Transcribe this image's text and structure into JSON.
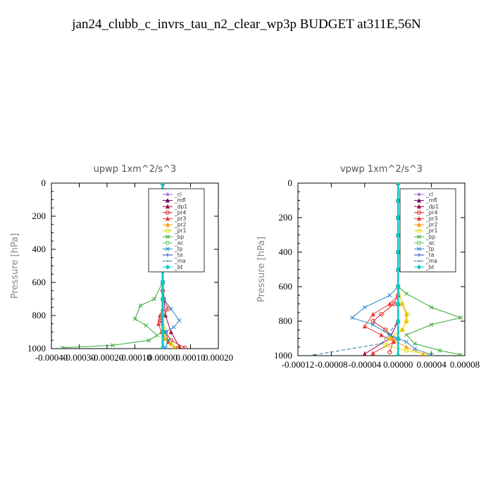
{
  "title": "jan24_clubb_c_invrs_tau_n2_clear_wp3p  BUDGET at311E,56N",
  "chart_data": [
    {
      "type": "line",
      "title": "upwp   1xm^2/s^3",
      "ylabel": "Pressure  [hPa]",
      "xlim": [
        -0.0004,
        0.0002
      ],
      "ylim": [
        1000,
        0
      ],
      "xticks": [
        -0.0004,
        -0.0003,
        -0.0002,
        -0.0001,
        0.0,
        0.0001,
        0.0002
      ],
      "xtick_labels": [
        "-0.00040",
        "-0.00030",
        "-0.00020",
        "-0.00010",
        "0.00000",
        "0.00010",
        "0.00020"
      ],
      "yticks": [
        0,
        200,
        400,
        600,
        800,
        1000
      ],
      "ytick_labels": [
        "0",
        "200",
        "400",
        "600",
        "800",
        "1000"
      ],
      "legend_position": "top-right",
      "series": [
        {
          "name": "_cl",
          "color": "#9966cc",
          "marker": "star",
          "x": [
            0,
            0,
            0,
            0,
            0,
            0,
            0,
            0,
            0,
            0,
            0
          ],
          "y": [
            0,
            100,
            200,
            300,
            400,
            500,
            600,
            700,
            800,
            900,
            1000
          ]
        },
        {
          "name": "_mfl",
          "color": "#660066",
          "marker": "tri",
          "x": [
            0,
            0,
            0,
            0,
            0,
            0,
            0,
            0,
            0,
            0,
            0
          ],
          "y": [
            0,
            100,
            200,
            300,
            400,
            500,
            600,
            700,
            800,
            900,
            1000
          ]
        },
        {
          "name": "_dp1",
          "color": "#aa0044",
          "marker": "tri",
          "x": [
            0,
            0,
            0,
            0,
            0,
            0,
            0,
            5e-06,
            1e-05,
            3e-05,
            6e-05
          ],
          "y": [
            0,
            100,
            200,
            300,
            400,
            500,
            600,
            700,
            800,
            900,
            990
          ]
        },
        {
          "name": "_pr4",
          "color": "#dd2222",
          "marker": "circle",
          "x": [
            0,
            0,
            0,
            0,
            0,
            0,
            3e-06,
            2e-05,
            -1e-05,
            1e-05,
            3e-05,
            8e-05
          ],
          "y": [
            0,
            200,
            400,
            500,
            600,
            650,
            700,
            760,
            830,
            900,
            950,
            995
          ]
        },
        {
          "name": "_pr3",
          "color": "#ee3333",
          "marker": "tri",
          "x": [
            0,
            0,
            0,
            0,
            0,
            0,
            -1e-05,
            -1.5e-05,
            -5e-06,
            2e-05,
            5e-05
          ],
          "y": [
            0,
            200,
            400,
            600,
            700,
            760,
            800,
            850,
            900,
            960,
            995
          ]
        },
        {
          "name": "_pr2",
          "color": "#ff9900",
          "marker": "tri",
          "x": [
            0,
            0,
            0,
            0,
            0,
            0,
            0,
            5e-06,
            1e-05,
            3e-05,
            4e-05
          ],
          "y": [
            0,
            200,
            400,
            600,
            700,
            800,
            850,
            900,
            940,
            970,
            995
          ]
        },
        {
          "name": "_pr1",
          "color": "#dddd00",
          "marker": "circle",
          "x": [
            0,
            0,
            0,
            0,
            0,
            0,
            5e-06,
            1e-05,
            3e-05,
            5e-05
          ],
          "y": [
            0,
            200,
            400,
            600,
            700,
            800,
            880,
            930,
            970,
            995
          ]
        },
        {
          "name": "_bp",
          "color": "#33aa33",
          "marker": "x",
          "x": [
            0,
            0,
            0,
            0,
            -3e-05,
            -8e-05,
            -0.0001,
            -6e-05,
            -2e-05,
            -5e-05,
            -0.00018,
            -0.00036
          ],
          "y": [
            0,
            200,
            400,
            600,
            700,
            740,
            820,
            860,
            920,
            950,
            980,
            995
          ]
        },
        {
          "name": "_ac",
          "color": "#66cc66",
          "marker": "circle",
          "x": [
            0,
            0,
            0,
            0,
            0,
            0,
            0,
            0,
            0,
            0,
            0
          ],
          "y": [
            0,
            100,
            200,
            300,
            400,
            500,
            600,
            700,
            800,
            900,
            1000
          ]
        },
        {
          "name": "_tp",
          "color": "#2288cc",
          "marker": "x",
          "x": [
            0,
            0,
            0,
            0,
            4e-06,
            3e-05,
            6e-05,
            4e-05,
            1e-05,
            2e-05,
            1e-05
          ],
          "y": [
            0,
            200,
            400,
            600,
            700,
            760,
            830,
            870,
            900,
            950,
            995
          ]
        },
        {
          "name": "_ta",
          "color": "#2244bb",
          "marker": "plus",
          "x": [
            0,
            0,
            0,
            0,
            0,
            0,
            0,
            0,
            0,
            0,
            0
          ],
          "y": [
            0,
            100,
            200,
            300,
            400,
            500,
            600,
            700,
            800,
            900,
            1000
          ]
        },
        {
          "name": "_ma",
          "color": "#227799",
          "marker": "dash",
          "x": [
            0,
            0,
            0,
            0,
            0,
            0,
            0,
            0,
            0,
            0,
            0
          ],
          "y": [
            0,
            100,
            200,
            300,
            400,
            500,
            600,
            700,
            800,
            900,
            1000
          ]
        },
        {
          "name": "_bt",
          "color": "#00cccc",
          "marker": "diamond",
          "x": [
            0,
            0,
            0,
            0,
            0,
            0,
            0,
            0,
            0,
            0,
            0
          ],
          "y": [
            0,
            100,
            200,
            300,
            400,
            500,
            600,
            700,
            800,
            900,
            1000
          ]
        }
      ]
    },
    {
      "type": "line",
      "title": "vpwp   1xm^2/s^3",
      "ylabel": "Pressure  [hPa]",
      "xlim": [
        -0.00012,
        8e-05
      ],
      "ylim": [
        1000,
        0
      ],
      "xticks": [
        -0.00012,
        -8e-05,
        -4e-05,
        0.0,
        4e-05,
        8e-05
      ],
      "xtick_labels": [
        "-0.00012",
        "-0.00008",
        "-0.00004",
        "0.00000",
        "0.00004",
        "0.00008"
      ],
      "yticks": [
        0,
        200,
        400,
        600,
        800,
        1000
      ],
      "ytick_labels": [
        "0",
        "200",
        "400",
        "600",
        "800",
        "1000"
      ],
      "legend_position": "top-right",
      "series": [
        {
          "name": "_cl",
          "color": "#9966cc",
          "marker": "star",
          "x": [
            0,
            0,
            0,
            0,
            0,
            0,
            0,
            0,
            0,
            0,
            0
          ],
          "y": [
            0,
            100,
            200,
            300,
            400,
            500,
            600,
            700,
            800,
            900,
            1000
          ]
        },
        {
          "name": "_mfl",
          "color": "#660066",
          "marker": "tri",
          "x": [
            0,
            0,
            0,
            0,
            0,
            0,
            0,
            0,
            0,
            0,
            0
          ],
          "y": [
            0,
            100,
            200,
            300,
            400,
            500,
            600,
            700,
            800,
            900,
            1000
          ]
        },
        {
          "name": "_dp1",
          "color": "#aa0044",
          "marker": "tri",
          "x": [
            0,
            0,
            0,
            0,
            0,
            0,
            0,
            0,
            0,
            -1e-05,
            -4e-05
          ],
          "y": [
            0,
            100,
            200,
            300,
            400,
            500,
            600,
            700,
            800,
            900,
            990
          ]
        },
        {
          "name": "_pr4",
          "color": "#dd2222",
          "marker": "circle",
          "x": [
            0,
            0,
            0,
            0,
            0,
            -5e-06,
            -2e-05,
            -3e-05,
            -1.5e-05,
            -5e-06,
            -1e-05
          ],
          "y": [
            0,
            200,
            400,
            600,
            650,
            700,
            760,
            800,
            850,
            900,
            980
          ]
        },
        {
          "name": "_pr3",
          "color": "#ee3333",
          "marker": "tri",
          "x": [
            0,
            0,
            0,
            0,
            0,
            -1e-05,
            -3e-05,
            -4e-05,
            -2e-05,
            -5e-06,
            -3e-05
          ],
          "y": [
            0,
            200,
            400,
            600,
            650,
            700,
            760,
            830,
            880,
            920,
            985
          ]
        },
        {
          "name": "_pr2",
          "color": "#ff9900",
          "marker": "tri",
          "x": [
            0,
            0,
            0,
            0,
            5e-06,
            1e-05,
            1e-05,
            5e-06,
            -1e-05,
            1e-05,
            3e-05
          ],
          "y": [
            0,
            200,
            400,
            600,
            700,
            760,
            800,
            850,
            900,
            950,
            990
          ]
        },
        {
          "name": "_pr1",
          "color": "#dddd00",
          "marker": "circle",
          "x": [
            0,
            0,
            0,
            0,
            5e-06,
            1.2e-05,
            1e-05,
            5e-06,
            -1e-05,
            -1.5e-05,
            1e-05,
            4e-05
          ],
          "y": [
            0,
            200,
            400,
            600,
            700,
            760,
            800,
            850,
            900,
            940,
            970,
            995
          ]
        },
        {
          "name": "_bp",
          "color": "#33aa33",
          "marker": "x",
          "x": [
            0,
            0,
            0,
            0,
            1e-05,
            4e-05,
            7.5e-05,
            4e-05,
            1e-05,
            2e-05,
            5e-05,
            7.5e-05
          ],
          "y": [
            0,
            200,
            400,
            600,
            640,
            720,
            780,
            820,
            880,
            930,
            970,
            995
          ]
        },
        {
          "name": "_ac",
          "color": "#66cc66",
          "marker": "circle",
          "x": [
            0,
            0,
            0,
            0,
            0,
            0,
            0,
            0,
            0,
            0,
            0
          ],
          "y": [
            0,
            100,
            200,
            300,
            400,
            500,
            600,
            700,
            800,
            900,
            1000
          ]
        },
        {
          "name": "_tp",
          "color": "#2288cc",
          "marker": "x",
          "x": [
            0,
            0,
            0,
            0,
            -1e-05,
            -4e-05,
            -5.5e-05,
            -3e-05,
            -1e-05,
            1e-05,
            2e-05,
            4e-05
          ],
          "y": [
            0,
            200,
            400,
            600,
            650,
            720,
            780,
            820,
            880,
            920,
            960,
            995
          ]
        },
        {
          "name": "_ta",
          "color": "#2244bb",
          "marker": "plus",
          "x": [
            0,
            0,
            0,
            0,
            0,
            0,
            0,
            0,
            0,
            0,
            0
          ],
          "y": [
            0,
            100,
            200,
            300,
            400,
            500,
            600,
            700,
            800,
            900,
            1000
          ]
        },
        {
          "name": "_ma",
          "color": "#227799",
          "marker": "dash",
          "x": [
            0,
            0,
            0,
            0,
            0,
            0,
            0,
            0,
            0,
            -2e-05,
            -0.0001
          ],
          "y": [
            0,
            100,
            200,
            300,
            400,
            500,
            600,
            700,
            800,
            930,
            995
          ]
        },
        {
          "name": "_bt",
          "color": "#00cccc",
          "marker": "diamond",
          "x": [
            0,
            0,
            0,
            0,
            0,
            0,
            0,
            0,
            0,
            0,
            0
          ],
          "y": [
            0,
            100,
            200,
            300,
            400,
            500,
            600,
            700,
            800,
            900,
            1000
          ]
        }
      ]
    }
  ]
}
